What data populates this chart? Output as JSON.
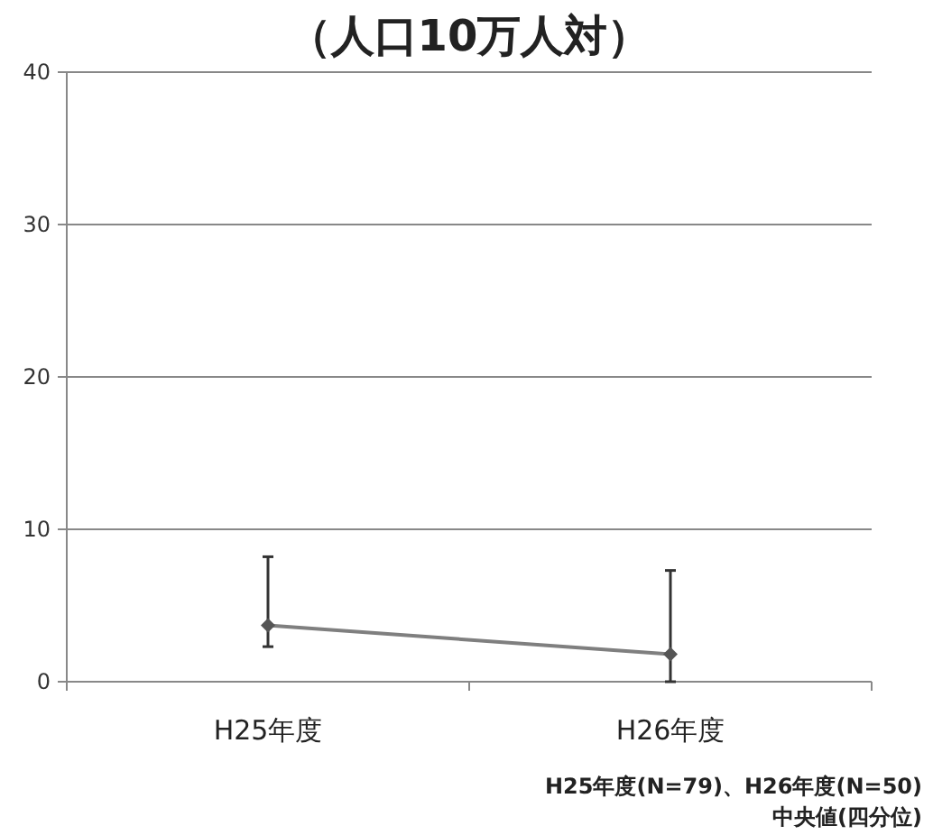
{
  "chart_data": {
    "type": "line",
    "title": "（人口10万人対）",
    "categories": [
      "H25年度",
      "H26年度"
    ],
    "series": [
      {
        "color": "#7f7f7f",
        "values": [
          3.7,
          1.8
        ],
        "errors": [
          [
            2.3,
            8.2
          ],
          [
            0,
            7.3
          ]
        ]
      }
    ],
    "ylim": [
      0,
      40
    ],
    "yticks": [
      0,
      10,
      20,
      30,
      40
    ],
    "grid": "y",
    "marker": "diamond",
    "line_style": "solid",
    "annotations": [
      "H25年度(N=79)、H26年度(N=50)",
      "中央値(四分位)"
    ]
  }
}
